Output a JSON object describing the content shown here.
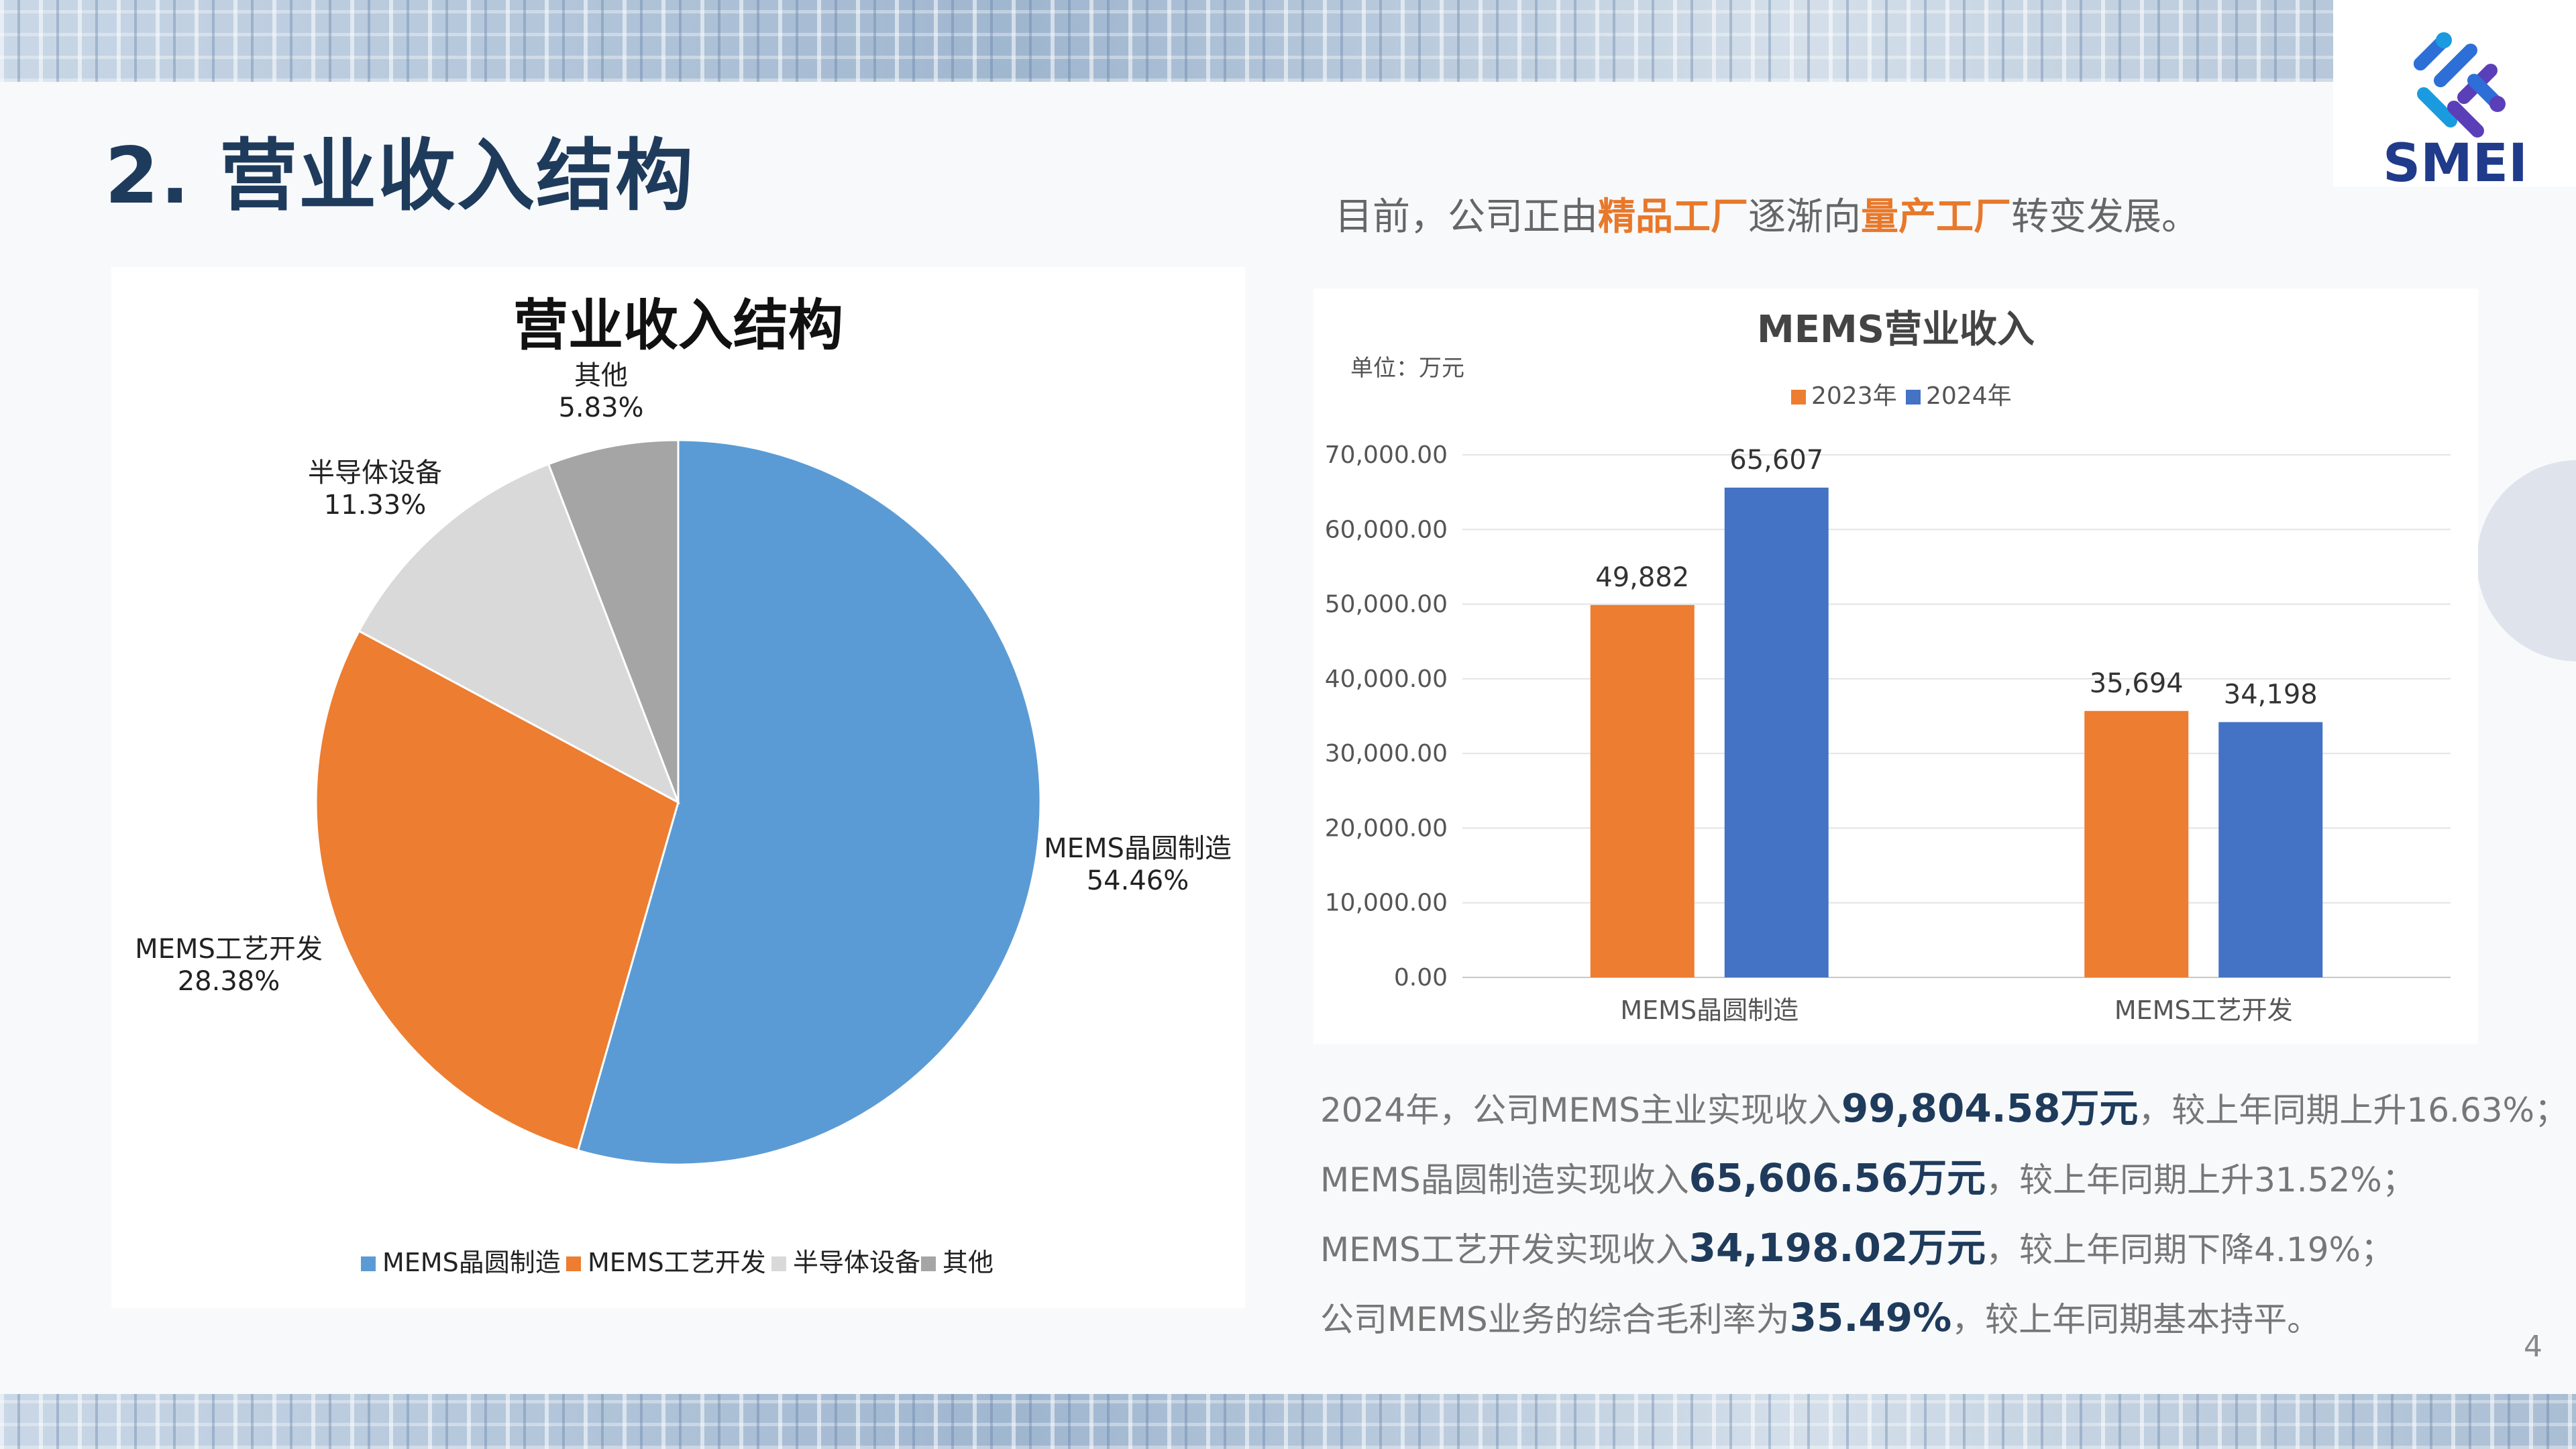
{
  "page": {
    "title": "2. 营业收入结构",
    "page_number": "4",
    "logo_text": "SMEI"
  },
  "intro": {
    "prefix": "目前，公司正由",
    "highlight1": "精品工厂",
    "middle": "逐渐向",
    "highlight2": "量产工厂",
    "suffix": "转变发展。"
  },
  "notes": [
    {
      "before": "2024年，公司MEMS主业实现收入",
      "value": "99,804.58万元",
      "after": "，较上年同期上升16.63%；"
    },
    {
      "before": "MEMS晶圆制造实现收入",
      "value": "65,606.56万元",
      "after": "，较上年同期上升31.52%；"
    },
    {
      "before": "MEMS工艺开发实现收入",
      "value": "34,198.02万元",
      "after": "，较上年同期下降4.19%；"
    },
    {
      "before": "公司MEMS业务的综合毛利率为",
      "value": "35.49%",
      "after": "，较上年同期基本持平。"
    }
  ],
  "colors": {
    "accent": "#e8782a",
    "title": "#1f3b5c",
    "blue": "#5b9bd5",
    "orange": "#ed7d31",
    "gray_light": "#d9d9d9",
    "gray_dark": "#a5a5a5",
    "bar_blue": "#4472c4"
  },
  "chart_data": [
    {
      "type": "pie",
      "title": "营业收入结构",
      "categories": [
        "MEMS晶圆制造",
        "MEMS工艺开发",
        "半导体设备",
        "其他"
      ],
      "values": [
        54.46,
        28.38,
        11.33,
        5.83
      ],
      "labels": [
        "54.46%",
        "28.38%",
        "11.33%",
        "5.83%"
      ],
      "colors": [
        "#5b9bd5",
        "#ed7d31",
        "#d9d9d9",
        "#a5a5a5"
      ],
      "legend": "bottom"
    },
    {
      "type": "bar",
      "title": "MEMS营业收入",
      "unit_label": "单位：万元",
      "categories": [
        "MEMS晶圆制造",
        "MEMS工艺开发"
      ],
      "series": [
        {
          "name": "2023年",
          "values": [
            49882,
            35694
          ],
          "labels": [
            "49,882",
            "35,694"
          ],
          "color": "#ed7d31"
        },
        {
          "name": "2024年",
          "values": [
            65607,
            34198
          ],
          "labels": [
            "65,607",
            "34,198"
          ],
          "color": "#4472c4"
        }
      ],
      "ylim": [
        0,
        70000
      ],
      "yticks": [
        "0.00",
        "10,000.00",
        "20,000.00",
        "30,000.00",
        "40,000.00",
        "50,000.00",
        "60,000.00",
        "70,000.00"
      ],
      "grid": true,
      "legend": "top"
    }
  ]
}
